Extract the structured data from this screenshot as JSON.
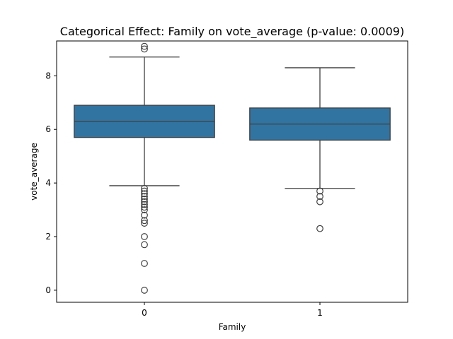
{
  "chart_data": {
    "type": "box",
    "title": "Categorical Effect: Family on vote_average (p-value: 0.0009)",
    "xlabel": "Family",
    "ylabel": "vote_average",
    "categories": [
      "0",
      "1"
    ],
    "ylim": [
      -0.45,
      9.3
    ],
    "yticks": [
      "0",
      "2",
      "4",
      "6",
      "8"
    ],
    "grid": false,
    "box_color": "#3274a1",
    "line_color": "#3f3f3f",
    "boxes": [
      {
        "category": "0",
        "whisker_low": 3.9,
        "q1": 5.7,
        "median": 6.3,
        "q3": 6.9,
        "whisker_high": 8.7,
        "outliers": [
          9.0,
          9.1,
          3.8,
          3.7,
          3.6,
          3.5,
          3.4,
          3.3,
          3.2,
          3.1,
          3.0,
          2.8,
          2.6,
          2.5,
          2.0,
          1.7,
          1.0,
          0.0
        ]
      },
      {
        "category": "1",
        "whisker_low": 3.8,
        "q1": 5.6,
        "median": 6.2,
        "q3": 6.8,
        "whisker_high": 8.3,
        "outliers": [
          3.7,
          3.5,
          3.3,
          2.3
        ]
      }
    ]
  }
}
